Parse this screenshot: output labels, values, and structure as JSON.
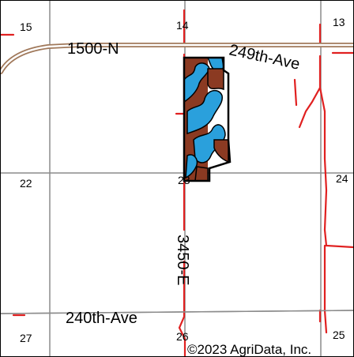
{
  "map": {
    "section_labels": {
      "s15": "15",
      "s14": "14",
      "s13": "13",
      "s22": "22",
      "s23": "23",
      "s24": "24",
      "s27": "27",
      "s26": "26",
      "s25": "25"
    },
    "roads": {
      "north_road_west": "1500-N",
      "north_road_east": "249th-Ave",
      "south_road": "240th-Ave",
      "vertical_road": "3450-E"
    },
    "copyright": "©2023 AgriData, Inc.",
    "colors": {
      "section_line": "#8c8c8c",
      "road_outline": "#a0785a",
      "stream": "#e02020",
      "soil_brown": "#8b3a22",
      "soil_blue": "#2aa0dc",
      "boundary": "#000000"
    }
  }
}
